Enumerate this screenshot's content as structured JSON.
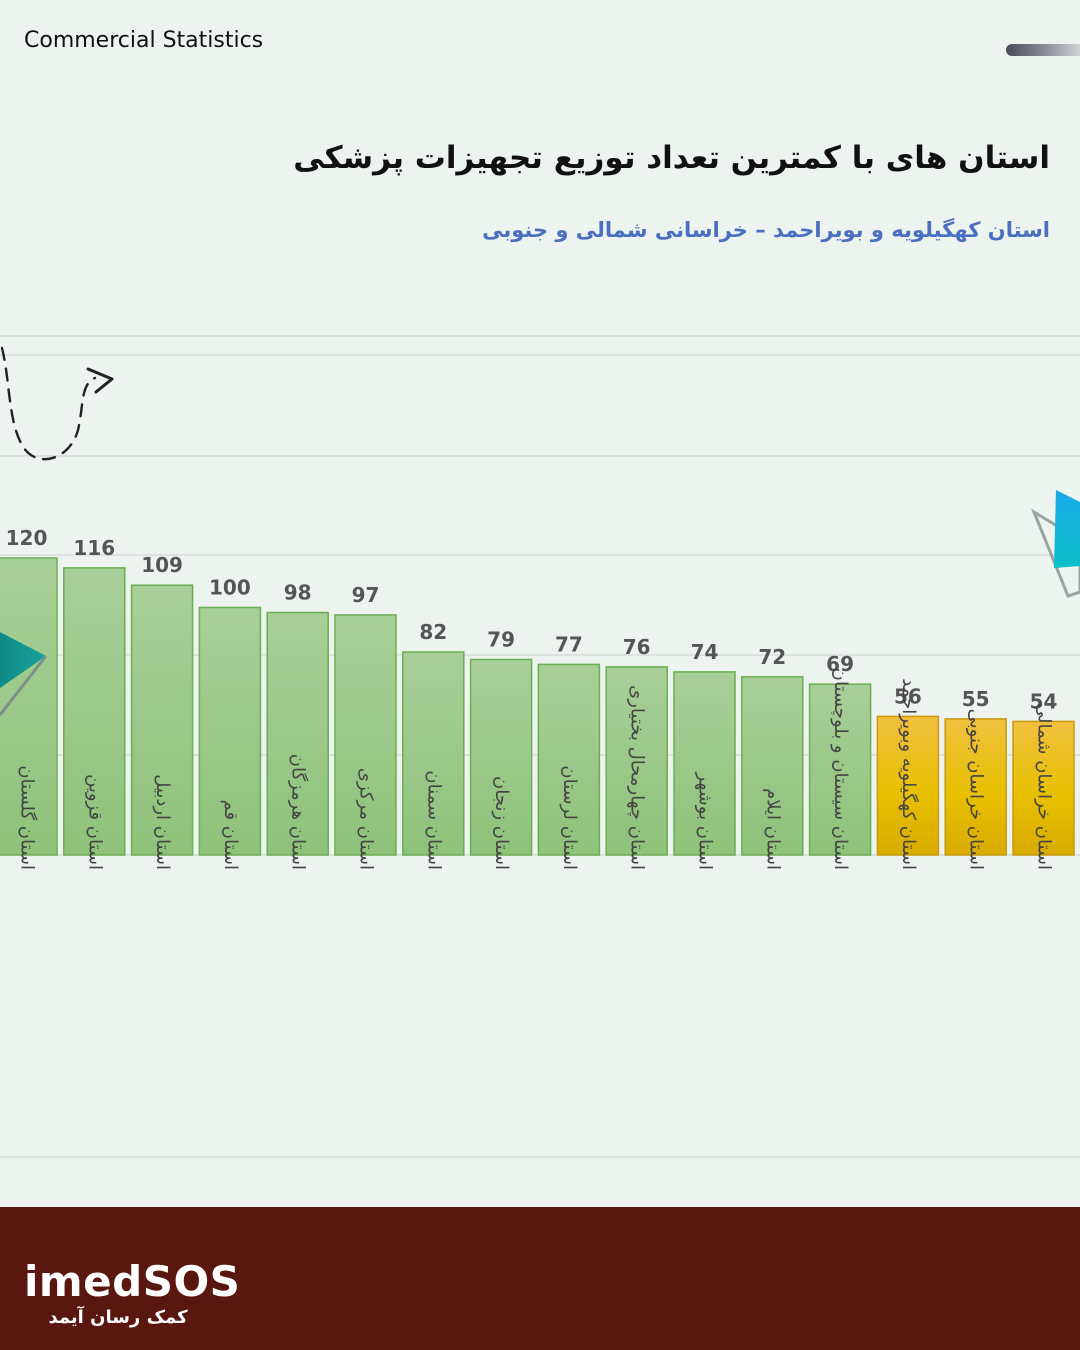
{
  "header": {
    "label": "Commercial Statistics"
  },
  "title": "استان های با کمترین تعداد توزیع تجهیزات پزشکی",
  "subtitle": "استان کهگیلویه و بویراحمد – خراسانی شمالی و جنوبی",
  "colors": {
    "normal_bar_top": "#a9cf98",
    "normal_bar_bottom": "#8ec27a",
    "normal_bar_border": "#6aaf52",
    "highlight_bar_top": "#f0c040",
    "highlight_bar_bottom": "#d8ab00",
    "highlight_bar_border": "#c99a10",
    "value_label": "#555555",
    "footer": "#5a1710"
  },
  "chart_data": {
    "type": "bar",
    "categories": [
      "استان گلستان",
      "استان قزوین",
      "استان اردبیل",
      "استان قم",
      "استان هرمزگان",
      "استان مرکزی",
      "استان سمنان",
      "استان زنجان",
      "استان لرستان",
      "استان چهارمحال بختیاری",
      "استان بوشهر",
      "استان ایلام",
      "استان سیستان و بلوچستان",
      "استان کهگیلویه وبویراحمد",
      "استان خراسان جنوبی",
      "استان خراسان شمالی"
    ],
    "values": [
      120,
      116,
      109,
      100,
      98,
      97,
      82,
      79,
      77,
      76,
      74,
      72,
      69,
      56,
      55,
      54
    ],
    "highlighted": [
      false,
      false,
      false,
      false,
      false,
      false,
      false,
      false,
      false,
      false,
      false,
      false,
      false,
      true,
      true,
      true
    ],
    "ylim": [
      0,
      250
    ],
    "grid": true,
    "legend": "none",
    "data_labels": true
  },
  "footer": {
    "brand": "imedSOS",
    "tagline": "کمک رسان آیمد"
  }
}
